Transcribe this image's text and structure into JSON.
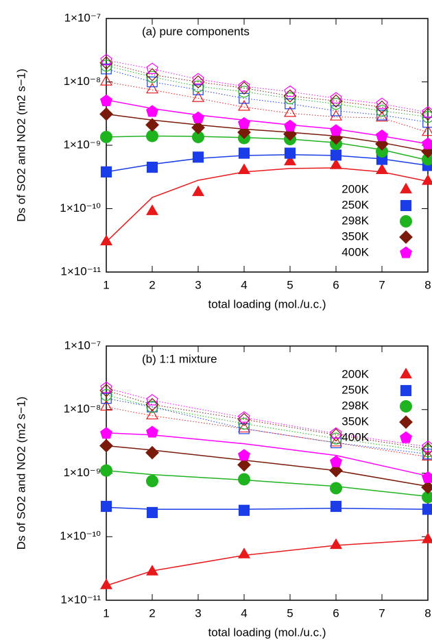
{
  "chart_data": [
    {
      "type": "scatter",
      "annotation": "(a) pure components",
      "xlabel": "total loading (mol./u.c.)",
      "ylabel": "Ds of SO2 and NO2 (m2 s−1)",
      "x": [
        1,
        2,
        3,
        4,
        5,
        6,
        7,
        8
      ],
      "xlim": [
        1,
        8
      ],
      "xticks": [
        1,
        2,
        3,
        4,
        5,
        6,
        7,
        8
      ],
      "ylim": [
        1e-11,
        1e-07
      ],
      "log_y": true,
      "yticks": [
        {
          "value": 1e-11,
          "label": "1×10⁻¹¹"
        },
        {
          "value": 1e-10,
          "label": "1×10⁻¹⁰"
        },
        {
          "value": 1e-09,
          "label": "1×10⁻⁹"
        },
        {
          "value": 1e-08,
          "label": "1×10⁻⁸"
        },
        {
          "value": 1e-07,
          "label": "1×10⁻⁷"
        }
      ],
      "legend": "bottom-right",
      "series": [
        {
          "name": "200K",
          "color": "#e8191b",
          "marker": "triangle",
          "filled": true,
          "values": [
            3e-11,
            9e-11,
            1.8e-10,
            4e-10,
            5.5e-10,
            4.8e-10,
            4e-10,
            2.7e-10
          ],
          "fit": [
            3e-11,
            1.5e-10,
            2.8e-10,
            3.8e-10,
            4.3e-10,
            4.4e-10,
            3.8e-10,
            2.7e-10
          ]
        },
        {
          "name": "250K",
          "color": "#1a3de8",
          "marker": "square",
          "filled": true,
          "values": [
            3.8e-10,
            4.5e-10,
            6.5e-10,
            7.5e-10,
            7.5e-10,
            7e-10,
            6e-10,
            4.8e-10
          ],
          "fit": [
            3.8e-10,
            5e-10,
            6.2e-10,
            6.9e-10,
            7.1e-10,
            6.9e-10,
            6.1e-10,
            4.8e-10
          ]
        },
        {
          "name": "298K",
          "color": "#1fb31f",
          "marker": "circle",
          "filled": true,
          "values": [
            1.35e-09,
            1.4e-09,
            1.35e-09,
            1.3e-09,
            1.25e-09,
            1.05e-09,
            8e-10,
            6e-10
          ],
          "fit": [
            1.35e-09,
            1.4e-09,
            1.38e-09,
            1.32e-09,
            1.25e-09,
            1.1e-09,
            8.5e-10,
            5.8e-10
          ]
        },
        {
          "name": "350K",
          "color": "#7a1a0a",
          "marker": "diamond",
          "filled": true,
          "values": [
            3.1e-09,
            2.1e-09,
            1.9e-09,
            1.6e-09,
            1.5e-09,
            1.3e-09,
            1.05e-09,
            8e-10
          ],
          "fit": [
            3.1e-09,
            2.5e-09,
            2.1e-09,
            1.8e-09,
            1.6e-09,
            1.4e-09,
            1.1e-09,
            8e-10
          ]
        },
        {
          "name": "400K",
          "color": "#ff00ff",
          "marker": "pentagon",
          "filled": true,
          "values": [
            5e-09,
            3.4e-09,
            2.7e-09,
            2.2e-09,
            2e-09,
            1.7e-09,
            1.4e-09,
            1.05e-09
          ],
          "fit": [
            5.2e-09,
            3.8e-09,
            3e-09,
            2.5e-09,
            2.1e-09,
            1.8e-09,
            1.4e-09,
            1.05e-09
          ]
        },
        {
          "color": "#e8191b",
          "marker": "triangle",
          "filled": false,
          "values": [
            1e-08,
            7.5e-09,
            5.5e-09,
            4e-09,
            3.2e-09,
            2.8e-09,
            2.7e-09,
            1.6e-09
          ]
        },
        {
          "color": "#1a3de8",
          "marker": "square",
          "filled": false,
          "values": [
            1.6e-08,
            1e-08,
            7.5e-09,
            5.5e-09,
            4.5e-09,
            3.5e-09,
            3e-09,
            2.3e-09
          ]
        },
        {
          "color": "#1fb31f",
          "marker": "circle",
          "filled": false,
          "values": [
            1.8e-08,
            1.2e-08,
            8.5e-09,
            7e-09,
            5.5e-09,
            4.5e-09,
            3.5e-09,
            2.8e-09
          ]
        },
        {
          "color": "#7a1a0a",
          "marker": "diamond",
          "filled": false,
          "values": [
            2e-08,
            1.3e-08,
            1e-08,
            8e-09,
            6e-09,
            5e-09,
            4e-09,
            3.1e-09
          ]
        },
        {
          "color": "#ff00ff",
          "marker": "pentagon",
          "filled": false,
          "values": [
            2.2e-08,
            1.6e-08,
            1.1e-08,
            8.5e-09,
            7e-09,
            5.5e-09,
            4.5e-09,
            3.3e-09
          ]
        }
      ]
    },
    {
      "type": "scatter",
      "annotation": "(b) 1:1 mixture",
      "xlabel": "total loading (mol./u.c.)",
      "ylabel": "Ds of SO2 and NO2 (m2 s−1)",
      "x": [
        1,
        2,
        4,
        6,
        8
      ],
      "xlim": [
        1,
        8
      ],
      "xticks": [
        1,
        2,
        3,
        4,
        5,
        6,
        7,
        8
      ],
      "ylim": [
        1e-11,
        1e-07
      ],
      "log_y": true,
      "yticks": [
        {
          "value": 1e-11,
          "label": "1×10⁻¹¹"
        },
        {
          "value": 1e-10,
          "label": "1×10⁻¹⁰"
        },
        {
          "value": 1e-09,
          "label": "1×10⁻⁹"
        },
        {
          "value": 1e-08,
          "label": "1×10⁻⁸"
        },
        {
          "value": 1e-07,
          "label": "1×10⁻⁷"
        }
      ],
      "legend": "top-right",
      "series": [
        {
          "name": "200K",
          "color": "#e8191b",
          "marker": "triangle",
          "filled": true,
          "values": [
            1.7e-11,
            2.8e-11,
            5.2e-11,
            7.3e-11,
            9e-11
          ],
          "fit": [
            1.7e-11,
            2.9e-11,
            5.1e-11,
            7.3e-11,
            9e-11
          ]
        },
        {
          "name": "250K",
          "color": "#1a3de8",
          "marker": "square",
          "filled": true,
          "values": [
            3e-10,
            2.4e-10,
            2.6e-10,
            3e-10,
            2.7e-10
          ],
          "fit": [
            2.9e-10,
            2.7e-10,
            2.7e-10,
            2.8e-10,
            2.7e-10
          ]
        },
        {
          "name": "298K",
          "color": "#1fb31f",
          "marker": "circle",
          "filled": true,
          "values": [
            1.1e-09,
            7.5e-10,
            8e-10,
            5.8e-10,
            4.2e-10
          ],
          "fit": [
            1.1e-09,
            9.5e-10,
            7.8e-10,
            6.2e-10,
            4.3e-10
          ]
        },
        {
          "name": "350K",
          "color": "#7a1a0a",
          "marker": "diamond",
          "filled": true,
          "values": [
            2.7e-09,
            2.1e-09,
            1.35e-09,
            1.1e-09,
            6e-10
          ],
          "fit": [
            2.7e-09,
            2.3e-09,
            1.6e-09,
            1.1e-09,
            6.2e-10
          ]
        },
        {
          "name": "400K",
          "color": "#ff00ff",
          "marker": "pentagon",
          "filled": true,
          "values": [
            4.2e-09,
            4.4e-09,
            1.9e-09,
            1.5e-09,
            8.5e-10
          ],
          "fit": [
            4.3e-09,
            4e-09,
            2.9e-09,
            1.9e-09,
            9e-10
          ]
        },
        {
          "color": "#e8191b",
          "marker": "triangle",
          "filled": false,
          "values": [
            1.1e-08,
            8e-09,
            5e-09,
            3e-09,
            1.8e-09
          ]
        },
        {
          "color": "#1a3de8",
          "marker": "square",
          "filled": false,
          "values": [
            1.5e-08,
            1.1e-08,
            5e-09,
            3e-09,
            2e-09
          ]
        },
        {
          "color": "#1fb31f",
          "marker": "circle",
          "filled": false,
          "values": [
            1.7e-08,
            1.1e-08,
            6e-09,
            3.5e-09,
            2.2e-09
          ]
        },
        {
          "color": "#7a1a0a",
          "marker": "diamond",
          "filled": false,
          "values": [
            2e-08,
            1.2e-08,
            7e-09,
            4e-09,
            2.4e-09
          ]
        },
        {
          "color": "#ff00ff",
          "marker": "pentagon",
          "filled": false,
          "values": [
            2.2e-08,
            1.4e-08,
            7.5e-09,
            4.2e-09,
            2.6e-09
          ]
        }
      ]
    }
  ]
}
